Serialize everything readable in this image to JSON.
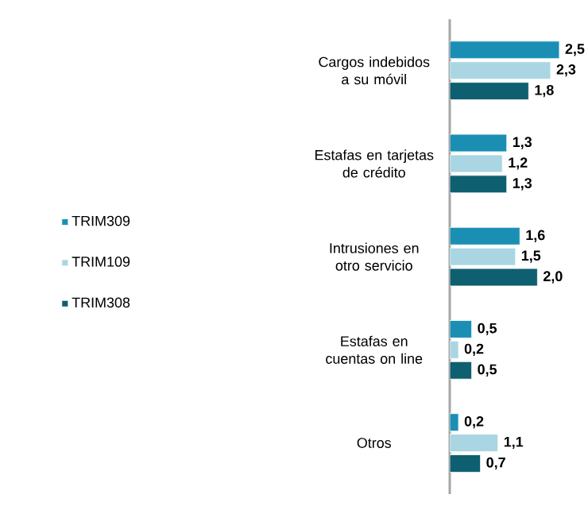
{
  "chart_data": {
    "type": "bar",
    "orientation": "horizontal",
    "categories": [
      "Cargos indebidos a su móvil",
      "Estafas en tarjetas de crédito",
      "Intrusiones en otro servicio",
      "Estafas en cuentas on line",
      "Otros"
    ],
    "series": [
      {
        "name": "TRIM309",
        "color": "#1b8fb3",
        "values": [
          2.5,
          1.3,
          1.6,
          0.5,
          0.2
        ],
        "value_labels": [
          "2,5",
          "1,3",
          "1,6",
          "0,5",
          "0,2"
        ]
      },
      {
        "name": "TRIM109",
        "color": "#a9d6e2",
        "values": [
          2.3,
          1.2,
          1.5,
          0.2,
          1.1
        ],
        "value_labels": [
          "2,3",
          "1,2",
          "1,5",
          "0,2",
          "1,1"
        ]
      },
      {
        "name": "TRIM308",
        "color": "#0e5f70",
        "values": [
          1.8,
          1.3,
          2.0,
          0.5,
          0.7
        ],
        "value_labels": [
          "1,8",
          "1,3",
          "2,0",
          "0,5",
          "0,7"
        ]
      }
    ],
    "xlim": [
      0,
      2.6
    ],
    "legend": "left",
    "tick_labels": "y"
  }
}
